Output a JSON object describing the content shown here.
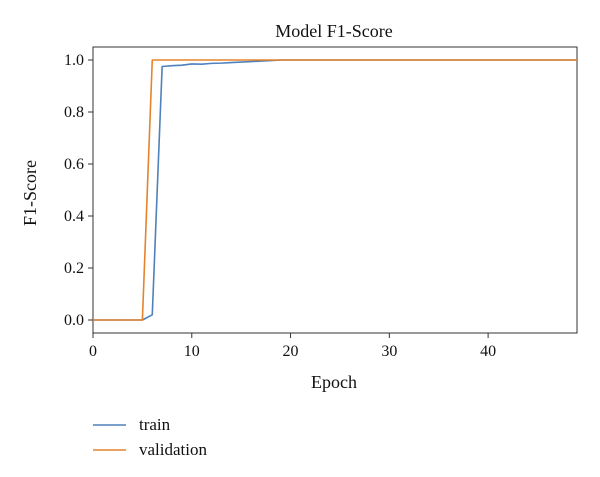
{
  "chart_data": {
    "type": "line",
    "title": "Model F1-Score",
    "xlabel": "Epoch",
    "ylabel": "F1-Score",
    "xlim": [
      0,
      49
    ],
    "ylim": [
      -0.05,
      1.05
    ],
    "xticks": [
      0,
      10,
      20,
      30,
      40
    ],
    "yticks": [
      0.0,
      0.2,
      0.4,
      0.6,
      0.8,
      1.0
    ],
    "ytick_labels": [
      "0.0",
      "0.2",
      "0.4",
      "0.6",
      "0.8",
      "1.0"
    ],
    "grid": false,
    "legend_position": "below",
    "series": [
      {
        "name": "train",
        "color": "#4e81bd",
        "x": [
          0,
          1,
          2,
          3,
          4,
          5,
          6,
          7,
          8,
          9,
          10,
          11,
          12,
          13,
          14,
          15,
          16,
          17,
          18,
          19,
          20,
          21,
          22,
          23,
          24,
          25,
          26,
          27,
          28,
          29,
          30,
          31,
          32,
          33,
          34,
          35,
          36,
          37,
          38,
          39,
          40,
          41,
          42,
          43,
          44,
          45,
          46,
          47,
          48,
          49
        ],
        "y": [
          0,
          0,
          0,
          0,
          0,
          0,
          0.02,
          0.975,
          0.978,
          0.98,
          0.985,
          0.984,
          0.987,
          0.988,
          0.99,
          0.992,
          0.994,
          0.996,
          0.998,
          1,
          1,
          1,
          1,
          1,
          1,
          1,
          1,
          1,
          1,
          1,
          1,
          1,
          1,
          1,
          1,
          1,
          1,
          1,
          1,
          1,
          1,
          1,
          1,
          1,
          1,
          1,
          1,
          1,
          1,
          1
        ]
      },
      {
        "name": "validation",
        "color": "#e5842c",
        "x": [
          0,
          1,
          2,
          3,
          4,
          5,
          6,
          7,
          8,
          9,
          10,
          11,
          12,
          13,
          14,
          15,
          16,
          17,
          18,
          19,
          20,
          21,
          22,
          23,
          24,
          25,
          26,
          27,
          28,
          29,
          30,
          31,
          32,
          33,
          34,
          35,
          36,
          37,
          38,
          39,
          40,
          41,
          42,
          43,
          44,
          45,
          46,
          47,
          48,
          49
        ],
        "y": [
          0,
          0,
          0,
          0,
          0,
          0,
          1,
          1,
          1,
          1,
          1,
          1,
          1,
          1,
          1,
          1,
          1,
          1,
          1,
          1,
          1,
          1,
          1,
          1,
          1,
          1,
          1,
          1,
          1,
          1,
          1,
          1,
          1,
          1,
          1,
          1,
          1,
          1,
          1,
          1,
          1,
          1,
          1,
          1,
          1,
          1,
          1,
          1,
          1,
          1
        ]
      }
    ]
  }
}
